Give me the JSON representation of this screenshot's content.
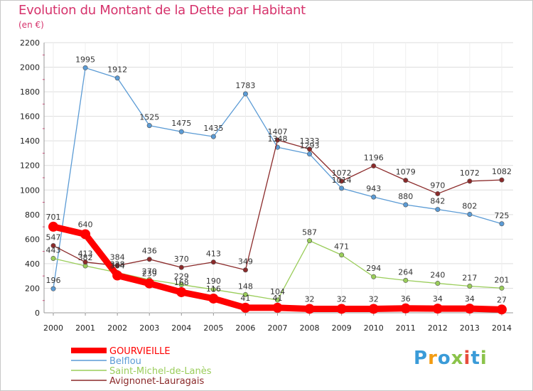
{
  "chart_data": {
    "type": "line",
    "title": "Evolution du Montant de la Dette par Habitant",
    "ylabel": "(en €)",
    "xlabel": "",
    "x": [
      "2000",
      "2001",
      "2002",
      "2003",
      "2004",
      "2005",
      "2006",
      "2007",
      "2008",
      "2009",
      "2010",
      "2011",
      "2012",
      "2013",
      "2014"
    ],
    "ylim": [
      0,
      2200
    ],
    "yticks": [
      0,
      200,
      400,
      600,
      800,
      1000,
      1200,
      1400,
      1600,
      1800,
      2000,
      2200
    ],
    "grid": "horizontal",
    "legend_position": "bottom-left",
    "series": [
      {
        "name": "GOURVIEILLE",
        "color": "#ff0000",
        "values": [
          701,
          640,
          304,
          239,
          168,
          116,
          41,
          41,
          32,
          32,
          32,
          36,
          34,
          34,
          27
        ],
        "labels": [
          "701",
          "640",
          "304",
          "239",
          "168",
          "116",
          "41",
          "41",
          "32",
          "32",
          "32",
          "36",
          "34",
          "34",
          "27"
        ]
      },
      {
        "name": "Belflou",
        "color": "#5b9bd5",
        "values": [
          196,
          1995,
          1912,
          1525,
          1475,
          1435,
          1783,
          1348,
          1293,
          1014,
          943,
          880,
          842,
          802,
          725
        ],
        "labels": [
          "196",
          "1995",
          "1912",
          "1525",
          "1475",
          "1435",
          "1783",
          "1348",
          "1293",
          "1014",
          "943",
          "880",
          "842",
          "802",
          "725"
        ]
      },
      {
        "name": "Saint-Michel-de-Lanès",
        "color": "#9acd5a",
        "values": [
          443,
          382,
          328,
          270,
          229,
          190,
          148,
          104,
          587,
          471,
          294,
          264,
          240,
          217,
          201
        ],
        "labels": [
          "443",
          "382",
          "328",
          "270",
          "229",
          "190",
          "148",
          "104",
          "587",
          "471",
          "294",
          "264",
          "240",
          "217",
          "201"
        ]
      },
      {
        "name": "Avignonet-Lauragais",
        "color": "#8b2a2a",
        "values": [
          547,
          413,
          384,
          436,
          370,
          413,
          349,
          1407,
          1333,
          1072,
          1196,
          1079,
          970,
          1072,
          1082
        ],
        "labels": [
          "547",
          "413",
          "384",
          "436",
          "370",
          "413",
          "349",
          "1407",
          "1333",
          "1072",
          "1196",
          "1079",
          "970",
          "1072",
          "1082"
        ]
      }
    ]
  },
  "logo": {
    "letters": [
      "P",
      "r",
      "o",
      "x",
      "i",
      "t",
      "i"
    ],
    "colors": [
      "#3a9bd8",
      "#f39c12",
      "#3a9bd8",
      "#8bc34a",
      "#e74c3c",
      "#3a9bd8",
      "#8bc34a"
    ]
  }
}
